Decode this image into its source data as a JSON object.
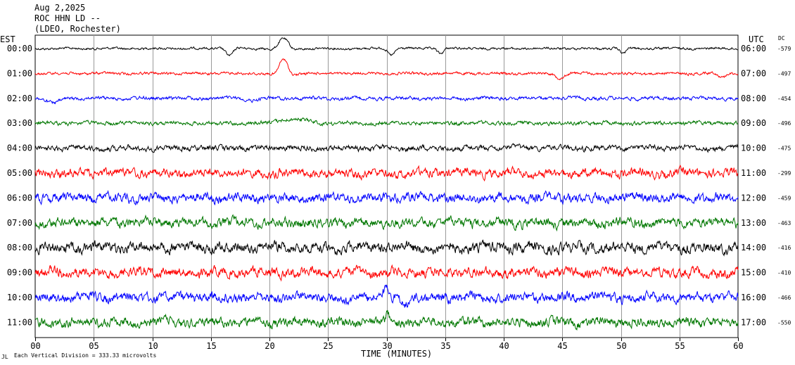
{
  "header": {
    "date": "Aug 2,2025",
    "station": "ROC HHN LD --",
    "network": "(LDEO, Rochester)"
  },
  "left_axis_title": "EST",
  "right_axis_title": "UTC",
  "dc_title": "DC",
  "footer_note": "Each Vertical Division = 333.33 microvolts",
  "footer_mark": "JL",
  "chart_data": {
    "type": "line",
    "title": "ROC HHN LD --",
    "xlabel": "TIME (MINUTES)",
    "ylabel": "",
    "xlim": [
      0,
      60
    ],
    "x_ticks": [
      "00",
      "05",
      "10",
      "15",
      "20",
      "25",
      "30",
      "35",
      "40",
      "45",
      "50",
      "55",
      "60"
    ],
    "grid": "vertical lines every 5 minutes",
    "trace_colors": [
      "#000000",
      "#ff0000",
      "#0000ff",
      "#007700"
    ],
    "rows": [
      {
        "est": "00:00",
        "utc": "06:00",
        "dc": "-579",
        "color": "#000000",
        "noise": 1.2,
        "events": [
          [
            16.6,
            10,
            0.6
          ],
          [
            21.2,
            -14,
            0.8
          ],
          [
            30.4,
            9,
            0.6
          ],
          [
            34.6,
            7,
            0.5
          ],
          [
            50.2,
            7,
            0.5
          ]
        ]
      },
      {
        "est": "01:00",
        "utc": "07:00",
        "dc": "-497",
        "color": "#ff0000",
        "noise": 1.4,
        "events": [
          [
            21.2,
            -20,
            0.7
          ],
          [
            44.8,
            6,
            0.8
          ],
          [
            58.6,
            5,
            0.6
          ]
        ]
      },
      {
        "est": "02:00",
        "utc": "08:00",
        "dc": "-454",
        "color": "#0000ff",
        "noise": 1.8,
        "events": [
          [
            1.5,
            7,
            1.2
          ],
          [
            18.5,
            3,
            1.0
          ]
        ]
      },
      {
        "est": "03:00",
        "utc": "09:00",
        "dc": "-496",
        "color": "#007700",
        "noise": 2.0,
        "events": [
          [
            22,
            -6,
            2.5
          ]
        ]
      },
      {
        "est": "04:00",
        "utc": "10:00",
        "dc": "-475",
        "color": "#000000",
        "noise": 2.8,
        "events": []
      },
      {
        "est": "05:00",
        "utc": "11:00",
        "dc": "-299",
        "color": "#ff0000",
        "noise": 4.5,
        "events": []
      },
      {
        "est": "06:00",
        "utc": "12:00",
        "dc": "-459",
        "color": "#0000ff",
        "noise": 4.8,
        "events": []
      },
      {
        "est": "07:00",
        "utc": "13:00",
        "dc": "-463",
        "color": "#007700",
        "noise": 5.0,
        "events": []
      },
      {
        "est": "08:00",
        "utc": "14:00",
        "dc": "-416",
        "color": "#000000",
        "noise": 5.5,
        "events": []
      },
      {
        "est": "09:00",
        "utc": "15:00",
        "dc": "-410",
        "color": "#ff0000",
        "noise": 5.0,
        "events": []
      },
      {
        "est": "10:00",
        "utc": "16:00",
        "dc": "-466",
        "color": "#0000ff",
        "noise": 5.0,
        "events": [
          [
            26.5,
            8,
            0.8
          ],
          [
            30.0,
            -16,
            0.4
          ],
          [
            31.5,
            9,
            0.7
          ]
        ]
      },
      {
        "est": "11:00",
        "utc": "17:00",
        "dc": "-550",
        "color": "#007700",
        "noise": 4.8,
        "events": [
          [
            30.1,
            -12,
            0.3
          ]
        ]
      }
    ]
  }
}
